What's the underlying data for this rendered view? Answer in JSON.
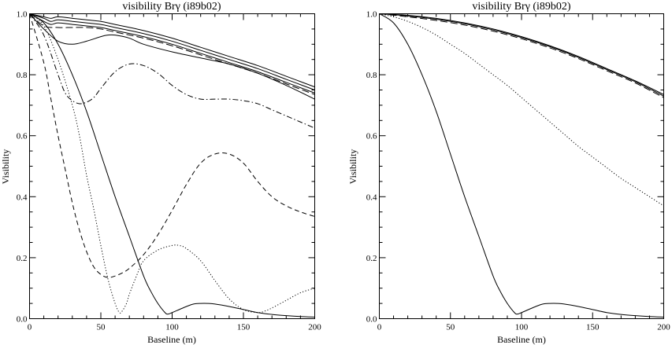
{
  "chart_data": [
    {
      "type": "line",
      "title": "visibility Brγ (i89b02)",
      "xlabel": "Baseline (m)",
      "ylabel": "Visibility",
      "xlim": [
        0,
        200
      ],
      "ylim": [
        0,
        1.0
      ],
      "xticks": [
        "0",
        "50",
        "100",
        "150",
        "200"
      ],
      "yticks": [
        "0.0",
        "0.2",
        "0.4",
        "0.6",
        "0.8",
        "1.0"
      ],
      "grid": false,
      "series": [
        {
          "dash": "solid",
          "x": [
            0,
            10,
            15,
            20,
            30,
            40,
            50,
            60,
            80,
            100,
            120,
            140,
            160,
            180,
            200
          ],
          "y": [
            1.0,
            0.99,
            0.985,
            0.99,
            0.985,
            0.98,
            0.975,
            0.965,
            0.945,
            0.92,
            0.89,
            0.86,
            0.83,
            0.795,
            0.76
          ]
        },
        {
          "dash": "solid",
          "x": [
            0,
            10,
            15,
            20,
            30,
            40,
            50,
            60,
            80,
            100,
            120,
            140,
            160,
            180,
            200
          ],
          "y": [
            1.0,
            0.985,
            0.975,
            0.98,
            0.975,
            0.97,
            0.965,
            0.955,
            0.935,
            0.91,
            0.88,
            0.85,
            0.82,
            0.785,
            0.75
          ]
        },
        {
          "dash": "solid",
          "x": [
            0,
            10,
            15,
            20,
            30,
            40,
            50,
            60,
            80,
            100,
            120,
            140,
            160,
            180,
            200
          ],
          "y": [
            1.0,
            0.975,
            0.965,
            0.97,
            0.965,
            0.96,
            0.955,
            0.945,
            0.925,
            0.9,
            0.87,
            0.84,
            0.81,
            0.775,
            0.74
          ]
        },
        {
          "dash": "long-dash",
          "x": [
            0,
            10,
            20,
            30,
            40,
            50,
            60,
            80,
            100,
            120,
            140,
            160,
            180,
            200
          ],
          "y": [
            1.0,
            0.96,
            0.955,
            0.955,
            0.955,
            0.95,
            0.94,
            0.92,
            0.895,
            0.865,
            0.835,
            0.805,
            0.77,
            0.735
          ]
        },
        {
          "dash": "solid",
          "x": [
            0,
            10,
            20,
            30,
            40,
            50,
            55,
            60,
            70,
            80,
            100,
            120,
            140,
            160,
            180,
            200
          ],
          "y": [
            1.0,
            0.95,
            0.91,
            0.9,
            0.91,
            0.925,
            0.93,
            0.93,
            0.92,
            0.9,
            0.875,
            0.855,
            0.835,
            0.805,
            0.765,
            0.72
          ]
        },
        {
          "dash": "dash-dot",
          "x": [
            0,
            10,
            20,
            25,
            30,
            35,
            40,
            45,
            50,
            60,
            70,
            80,
            90,
            100,
            110,
            120,
            130,
            140,
            150,
            160,
            170,
            180,
            190,
            200
          ],
          "y": [
            1.0,
            0.93,
            0.8,
            0.74,
            0.715,
            0.705,
            0.71,
            0.725,
            0.755,
            0.81,
            0.835,
            0.83,
            0.805,
            0.765,
            0.735,
            0.72,
            0.72,
            0.72,
            0.715,
            0.705,
            0.685,
            0.665,
            0.645,
            0.625
          ]
        },
        {
          "dash": "dash",
          "x": [
            0,
            10,
            15,
            20,
            25,
            30,
            35,
            40,
            45,
            50,
            55,
            60,
            65,
            70,
            80,
            90,
            100,
            110,
            120,
            130,
            140,
            150,
            160,
            170,
            180,
            190,
            200
          ],
          "y": [
            1.0,
            0.84,
            0.72,
            0.6,
            0.49,
            0.38,
            0.29,
            0.22,
            0.17,
            0.145,
            0.135,
            0.14,
            0.15,
            0.165,
            0.21,
            0.275,
            0.355,
            0.44,
            0.51,
            0.54,
            0.54,
            0.51,
            0.45,
            0.4,
            0.37,
            0.35,
            0.335
          ]
        },
        {
          "dash": "dot",
          "x": [
            0,
            10,
            20,
            30,
            35,
            40,
            45,
            50,
            55,
            60,
            63,
            65,
            68,
            70,
            75,
            80,
            90,
            100,
            105,
            110,
            120,
            130,
            140,
            150,
            160,
            165,
            170,
            180,
            190,
            200
          ],
          "y": [
            1.0,
            0.96,
            0.85,
            0.7,
            0.6,
            0.47,
            0.36,
            0.24,
            0.13,
            0.05,
            0.02,
            0.025,
            0.05,
            0.08,
            0.14,
            0.19,
            0.225,
            0.24,
            0.24,
            0.23,
            0.19,
            0.125,
            0.065,
            0.03,
            0.02,
            0.025,
            0.035,
            0.06,
            0.085,
            0.1
          ]
        },
        {
          "dash": "solid",
          "x": [
            0,
            10,
            20,
            30,
            40,
            50,
            60,
            70,
            80,
            85,
            90,
            95,
            97,
            100,
            105,
            110,
            115,
            120,
            125,
            130,
            140,
            150,
            160,
            170,
            180,
            190,
            200
          ],
          "y": [
            1.0,
            0.97,
            0.9,
            0.8,
            0.68,
            0.54,
            0.4,
            0.27,
            0.14,
            0.09,
            0.05,
            0.02,
            0.015,
            0.02,
            0.03,
            0.04,
            0.048,
            0.05,
            0.05,
            0.048,
            0.04,
            0.03,
            0.02,
            0.014,
            0.01,
            0.007,
            0.005
          ]
        }
      ]
    },
    {
      "type": "line",
      "title": "visibility Brγ (i89b02)",
      "xlabel": "Baseline (m)",
      "ylabel": "Visibility",
      "xlim": [
        0,
        200
      ],
      "ylim": [
        0,
        1.0
      ],
      "xticks": [
        "0",
        "50",
        "100",
        "150",
        "200"
      ],
      "yticks": [
        "0.0",
        "0.2",
        "0.4",
        "0.6",
        "0.8",
        "1.0"
      ],
      "grid": false,
      "series": [
        {
          "dash": "solid",
          "x": [
            0,
            20,
            40,
            60,
            80,
            100,
            120,
            140,
            160,
            180,
            200
          ],
          "y": [
            1.0,
            0.995,
            0.985,
            0.97,
            0.95,
            0.925,
            0.895,
            0.86,
            0.82,
            0.78,
            0.735
          ]
        },
        {
          "dash": "solid",
          "x": [
            0,
            20,
            40,
            60,
            80,
            100,
            120,
            140,
            160,
            180,
            200
          ],
          "y": [
            1.0,
            0.993,
            0.982,
            0.967,
            0.947,
            0.922,
            0.892,
            0.857,
            0.817,
            0.777,
            0.73
          ]
        },
        {
          "dash": "long-dash",
          "x": [
            0,
            20,
            40,
            60,
            80,
            100,
            120,
            140,
            160,
            180,
            200
          ],
          "y": [
            1.0,
            0.99,
            0.978,
            0.963,
            0.943,
            0.918,
            0.888,
            0.853,
            0.813,
            0.773,
            0.725
          ]
        },
        {
          "dash": "dot",
          "x": [
            0,
            10,
            20,
            30,
            40,
            50,
            60,
            70,
            80,
            90,
            100,
            110,
            120,
            130,
            140,
            150,
            160,
            170,
            180,
            190,
            200
          ],
          "y": [
            1.0,
            0.99,
            0.975,
            0.955,
            0.93,
            0.9,
            0.87,
            0.835,
            0.8,
            0.765,
            0.725,
            0.685,
            0.645,
            0.605,
            0.565,
            0.53,
            0.495,
            0.46,
            0.43,
            0.4,
            0.37
          ]
        },
        {
          "dash": "solid",
          "x": [
            0,
            10,
            20,
            30,
            40,
            50,
            60,
            70,
            80,
            85,
            90,
            95,
            97,
            100,
            105,
            110,
            115,
            120,
            125,
            130,
            140,
            150,
            160,
            170,
            180,
            190,
            200
          ],
          "y": [
            1.0,
            0.97,
            0.9,
            0.8,
            0.68,
            0.54,
            0.4,
            0.27,
            0.14,
            0.09,
            0.05,
            0.02,
            0.015,
            0.02,
            0.03,
            0.04,
            0.048,
            0.05,
            0.05,
            0.048,
            0.04,
            0.03,
            0.02,
            0.014,
            0.01,
            0.007,
            0.005
          ]
        }
      ]
    }
  ]
}
